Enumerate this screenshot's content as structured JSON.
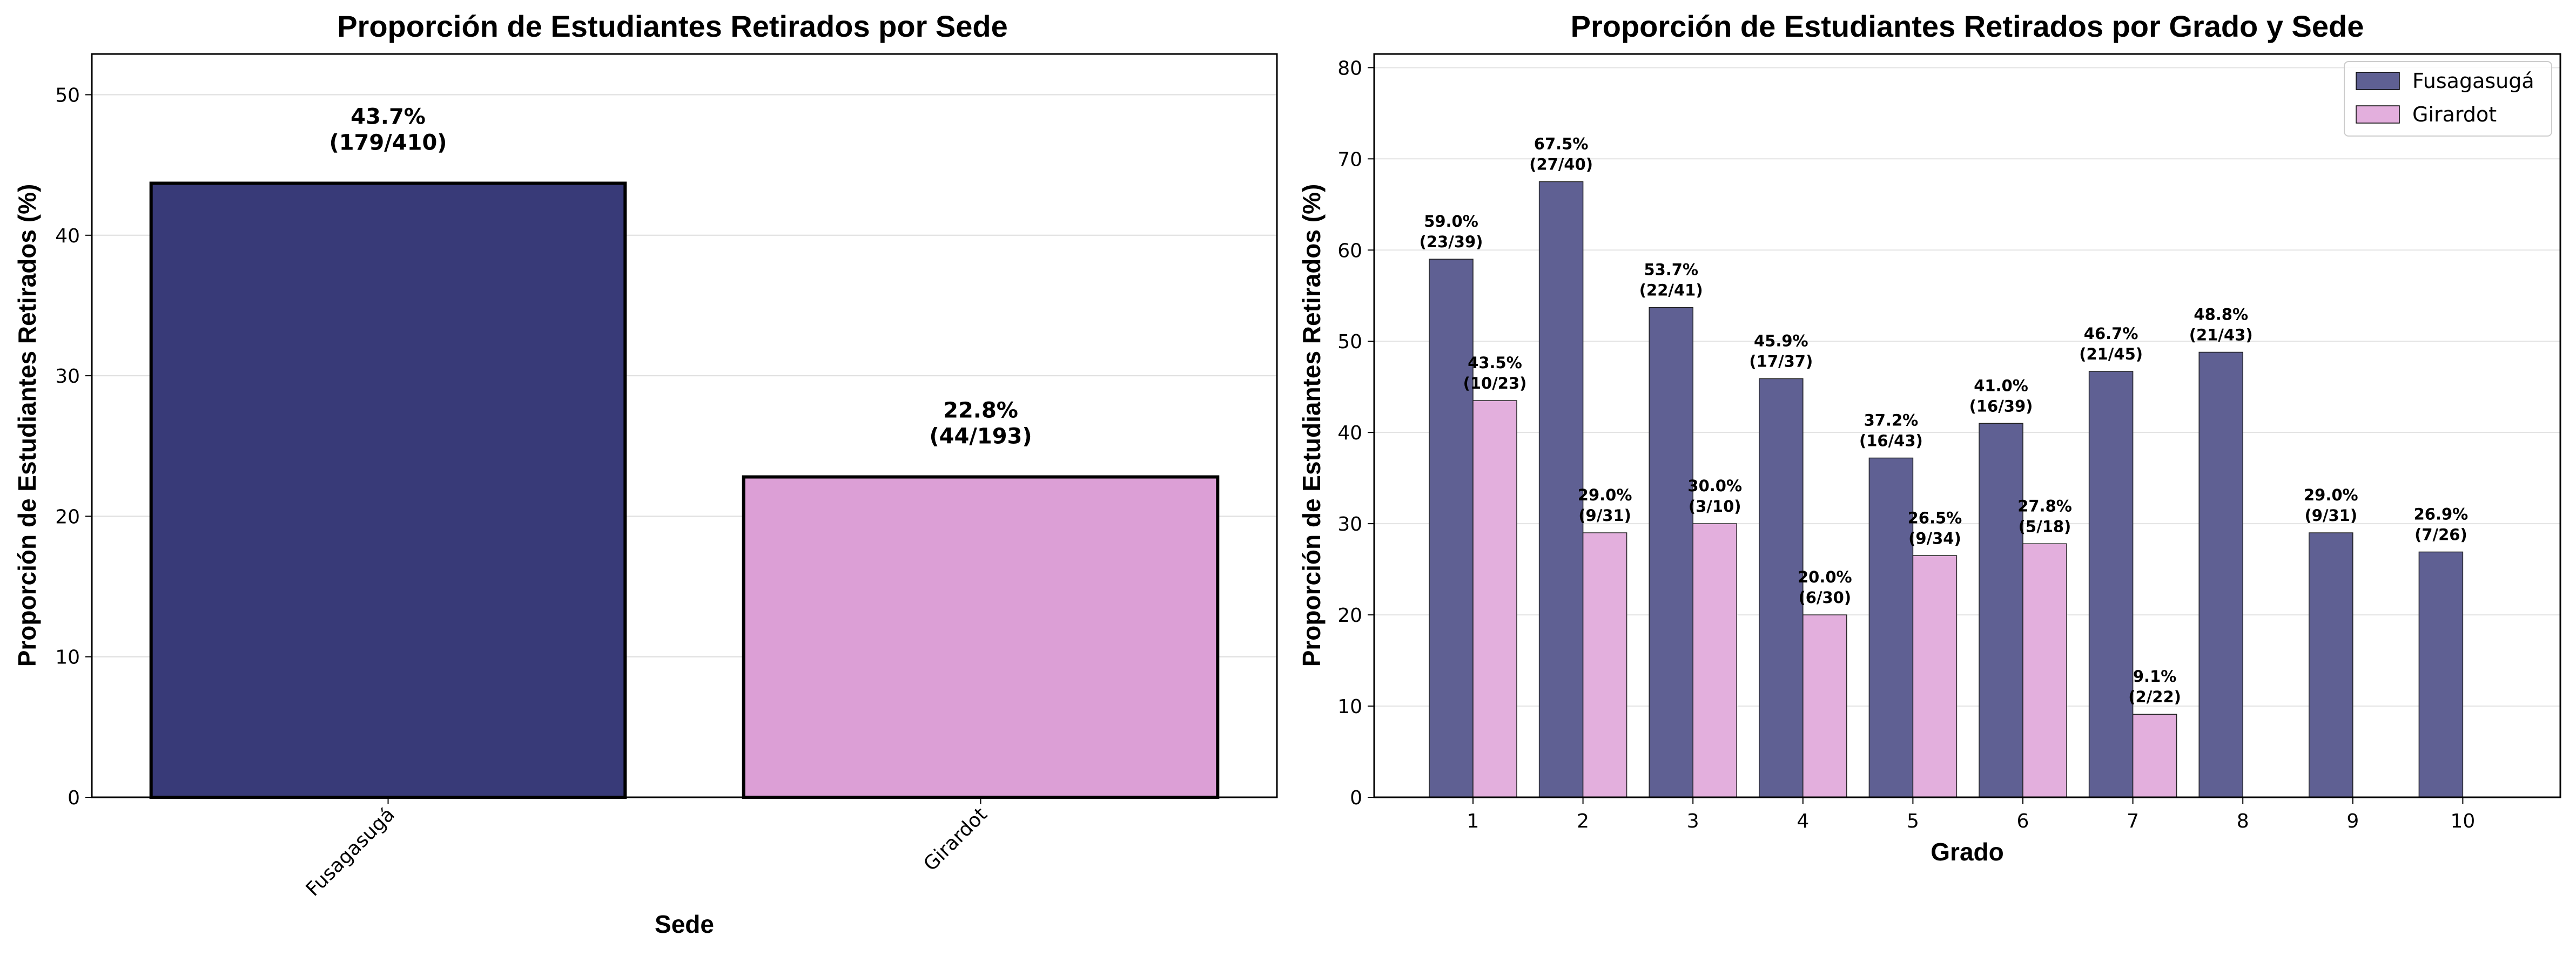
{
  "chart_data": [
    {
      "type": "bar",
      "title": "Proporción de Estudiantes Retirados por Sede",
      "xlabel": "Sede",
      "ylabel": "Proporción de Estudiantes Retirados (%)",
      "ylim": [
        0,
        52.9
      ],
      "yticks": [
        0,
        10,
        20,
        30,
        40,
        50
      ],
      "grid": "y",
      "categories": [
        "Fusagasugá",
        "Girardot"
      ],
      "values": [
        43.7,
        22.8
      ],
      "labels": [
        [
          "43.7%",
          "(179/410)"
        ],
        [
          "22.8%",
          "(44/193)"
        ]
      ],
      "colors": [
        "#383a78",
        "#dc9fd6"
      ]
    },
    {
      "type": "bar",
      "title": "Proporción de Estudiantes Retirados por Grado y Sede",
      "xlabel": "Grado",
      "ylabel": "Proporción de Estudiantes Retirados (%)",
      "ylim": [
        0,
        81.5
      ],
      "yticks": [
        0,
        10,
        20,
        30,
        40,
        50,
        60,
        70,
        80
      ],
      "grid": "y",
      "legend": "top-right",
      "categories": [
        "1",
        "2",
        "3",
        "4",
        "5",
        "6",
        "7",
        "8",
        "9",
        "10"
      ],
      "series": [
        {
          "name": "Fusagasugá",
          "color": "#5f6093",
          "values": [
            59.0,
            67.5,
            53.7,
            45.9,
            37.2,
            41.0,
            46.7,
            48.8,
            29.0,
            26.9
          ],
          "labels": [
            [
              "59.0%",
              "(23/39)"
            ],
            [
              "67.5%",
              "(27/40)"
            ],
            [
              "53.7%",
              "(22/41)"
            ],
            [
              "45.9%",
              "(17/37)"
            ],
            [
              "37.2%",
              "(16/43)"
            ],
            [
              "41.0%",
              "(16/39)"
            ],
            [
              "46.7%",
              "(21/45)"
            ],
            [
              "48.8%",
              "(21/43)"
            ],
            [
              "29.0%",
              "(9/31)"
            ],
            [
              "26.9%",
              "(7/26)"
            ]
          ]
        },
        {
          "name": "Girardot",
          "color": "#e3afdd",
          "values": [
            43.5,
            29.0,
            30.0,
            20.0,
            26.5,
            27.8,
            9.1,
            null,
            null,
            null
          ],
          "labels": [
            [
              "43.5%",
              "(10/23)"
            ],
            [
              "29.0%",
              "(9/31)"
            ],
            [
              "30.0%",
              "(3/10)"
            ],
            [
              "20.0%",
              "(6/30)"
            ],
            [
              "26.5%",
              "(9/34)"
            ],
            [
              "27.8%",
              "(5/18)"
            ],
            [
              "9.1%",
              "(2/22)"
            ],
            null,
            null,
            null
          ]
        }
      ]
    }
  ]
}
